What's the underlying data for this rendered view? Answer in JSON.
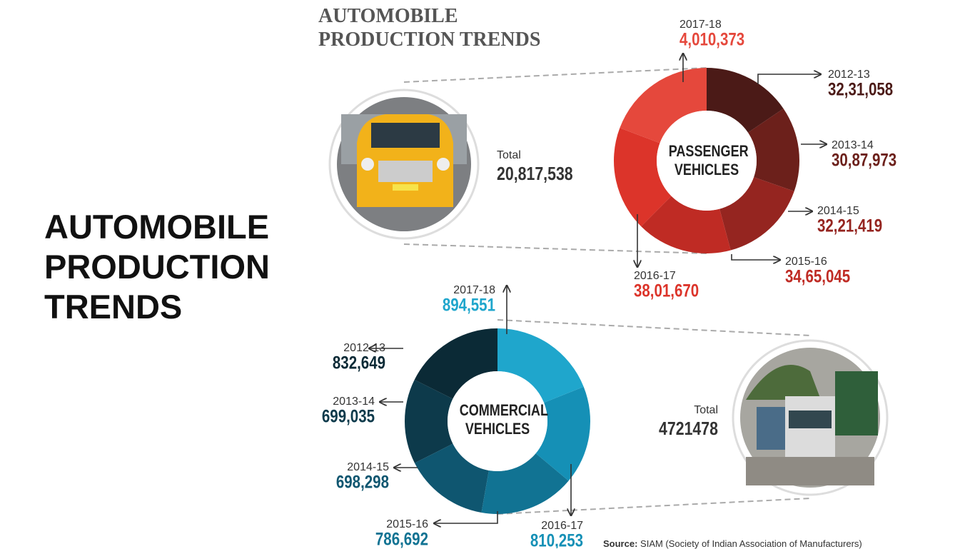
{
  "header": {
    "title_small": "AUTOMOBILE PRODUCTION TRENDS",
    "title_large": "AUTOMOBILE PRODUCTION TRENDS"
  },
  "source": {
    "label": "Source:",
    "text": "SIAM (Society of Indian Association of Manufacturers)"
  },
  "chart_data": [
    {
      "type": "pie",
      "title": "PASSENGER VEHICLES",
      "direction": "clockwise",
      "categories": [
        "2012-13",
        "2013-14",
        "2014-15",
        "2015-16",
        "2016-17",
        "2017-18"
      ],
      "values": [
        3231058,
        3087973,
        3221419,
        3465045,
        3801670,
        4010373
      ],
      "value_labels": [
        "32,31,058",
        "30,87,973",
        "32,21,419",
        "34,65,045",
        "38,01,670",
        "4,010,373"
      ],
      "colors": [
        "#4b1a17",
        "#6c201b",
        "#952520",
        "#bf2b24",
        "#dc342a",
        "#e5483c"
      ],
      "total_label": "Total",
      "total": {
        "value": 20817538,
        "label": "20,817,538"
      }
    },
    {
      "type": "pie",
      "title": "COMMERCIAL VEHICLES",
      "direction": "counterclockwise",
      "categories": [
        "2012-13",
        "2013-14",
        "2014-15",
        "2015-16",
        "2016-17",
        "2017-18"
      ],
      "values": [
        832649,
        699035,
        698298,
        786692,
        810253,
        894551
      ],
      "value_labels": [
        "832,649",
        "699,035",
        "698,298",
        "786,692",
        "810,253",
        "894,551"
      ],
      "colors": [
        "#0b2a36",
        "#0d3a4b",
        "#0f5670",
        "#117393",
        "#1590b6",
        "#1fa6cc"
      ],
      "total_label": "Total",
      "total": 4721478
    }
  ]
}
